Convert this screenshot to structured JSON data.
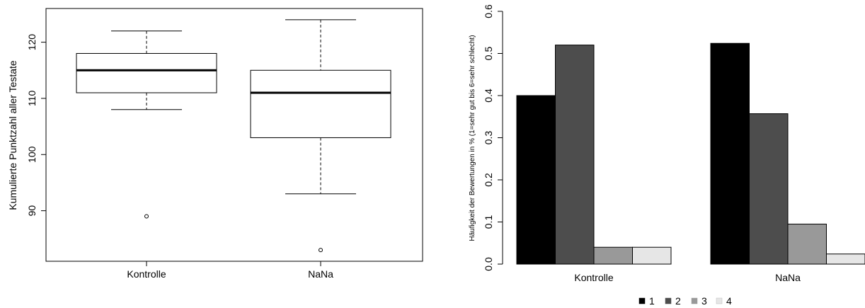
{
  "chart_data": [
    {
      "type": "boxplot",
      "title": "",
      "xlabel": "",
      "ylabel": "Kumulierte Punktzahl aller Testate",
      "ylim": [
        81,
        126
      ],
      "yticks": [
        90,
        100,
        110,
        120
      ],
      "categories": [
        "Kontrolle",
        "NaNa"
      ],
      "boxes": [
        {
          "category": "Kontrolle",
          "whisker_low": 108,
          "q1": 111,
          "median": 115,
          "q3": 118,
          "whisker_high": 122,
          "outliers": [
            89
          ]
        },
        {
          "category": "NaNa",
          "whisker_low": 93,
          "q1": 103,
          "median": 111,
          "q3": 115,
          "whisker_high": 124,
          "outliers": [
            83
          ]
        }
      ],
      "grid": false
    },
    {
      "type": "bar",
      "title": "",
      "xlabel": "",
      "ylabel": "Häufigkeit der Bewertungen in % (1=sehr gut bis 6=sehr schlecht)",
      "ylim": [
        0,
        0.6
      ],
      "yticks": [
        "0.0",
        "0.1",
        "0.2",
        "0.3",
        "0.4",
        "0.5",
        "0.6"
      ],
      "categories": [
        "Kontrolle",
        "NaNa"
      ],
      "series": [
        {
          "name": "1",
          "color": "#000000",
          "values": [
            0.4,
            0.524
          ]
        },
        {
          "name": "2",
          "color": "#4d4d4d",
          "values": [
            0.52,
            0.357
          ]
        },
        {
          "name": "3",
          "color": "#999999",
          "values": [
            0.04,
            0.095
          ]
        },
        {
          "name": "4",
          "color": "#e6e6e6",
          "values": [
            0.04,
            0.024
          ]
        }
      ],
      "legend_position": "bottom",
      "grid": false
    }
  ]
}
